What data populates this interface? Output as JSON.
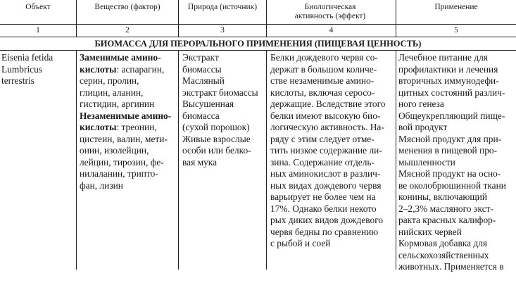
{
  "header": {
    "columns": [
      "Объект",
      "Вещество (фактор)",
      "Природа (источник)",
      "Биологическая активность (эффект)",
      "Применение"
    ],
    "numbers": [
      "1",
      "2",
      "3",
      "4",
      "5"
    ]
  },
  "section_title": "БИОМАССА ДЛЯ ПЕРОРАЛЬНОГО ПРИМЕНЕНИЯ (ПИЩЕВАЯ ЦЕННОСТЬ)",
  "row": {
    "object": [
      "Eisenia fetida",
      "Lumbricus",
      "terrestris"
    ],
    "substance": [
      {
        "bold": "Заменимые амино-",
        "text": ""
      },
      {
        "bold": "кислоты",
        "text": ": аспарагин,"
      },
      {
        "bold": "",
        "text": "серин, пролин,"
      },
      {
        "bold": "",
        "text": "глицин, аланин,"
      },
      {
        "bold": "",
        "text": "гистидин, аргинин"
      },
      {
        "bold": "Незаменимые амино-",
        "text": ""
      },
      {
        "bold": "кислоты",
        "text": ": треонин,"
      },
      {
        "bold": "",
        "text": "цистеин, валин, мети-"
      },
      {
        "bold": "",
        "text": "онин, изолейцин,"
      },
      {
        "bold": "",
        "text": "лейцин, тирозин, фе-"
      },
      {
        "bold": "",
        "text": "нилаланин, трипто-"
      },
      {
        "bold": "",
        "text": "фан, лизин"
      }
    ],
    "source": [
      "Экстракт",
      "биомассы",
      "Масляный",
      "экстракт биомассы",
      "Высушенная",
      "биомасса",
      "(сухой порошок)",
      "Живые взрослые",
      "особи или белко-",
      "вая мука"
    ],
    "activity": [
      "Белки дождевого червя со-",
      "держат в большом количе-",
      "стве незаменимые амино-",
      "кислоты, включая серосо-",
      "держащие. Вследствие этого",
      "белки имеют высокую био-",
      "логическую активность. На-",
      "ряду с этим следует отме-",
      "тить низкое содержание ли-",
      "зина. Содержание отдель-",
      "ных аминокислот в различ-",
      "ных видах дождевого червя",
      "варьирует не более чем на",
      "17%. Однако белки некото",
      "рых диких видов дождевого",
      "червя бедны по сравнению",
      "с рыбой и соей"
    ],
    "application": [
      "Лечебное питание для",
      "профилактики и лечения",
      "вторичных иммунодефи-",
      "цитных состояний различ-",
      "ного генеза",
      "Общеукрепляющий пище-",
      "вой продукт",
      "Мясной продукт для при-",
      "менения в пищевой про-",
      "мышленности",
      "Мясной продукт на осно-",
      "ве околобрюшинной ткани",
      "конины, включающий",
      "2–2,3% масляного экст-",
      "ракта красных калифор-",
      "нийских червей",
      "Кормовая добавка для",
      "сельскохозяйственных",
      "животных. Применяется в"
    ]
  }
}
